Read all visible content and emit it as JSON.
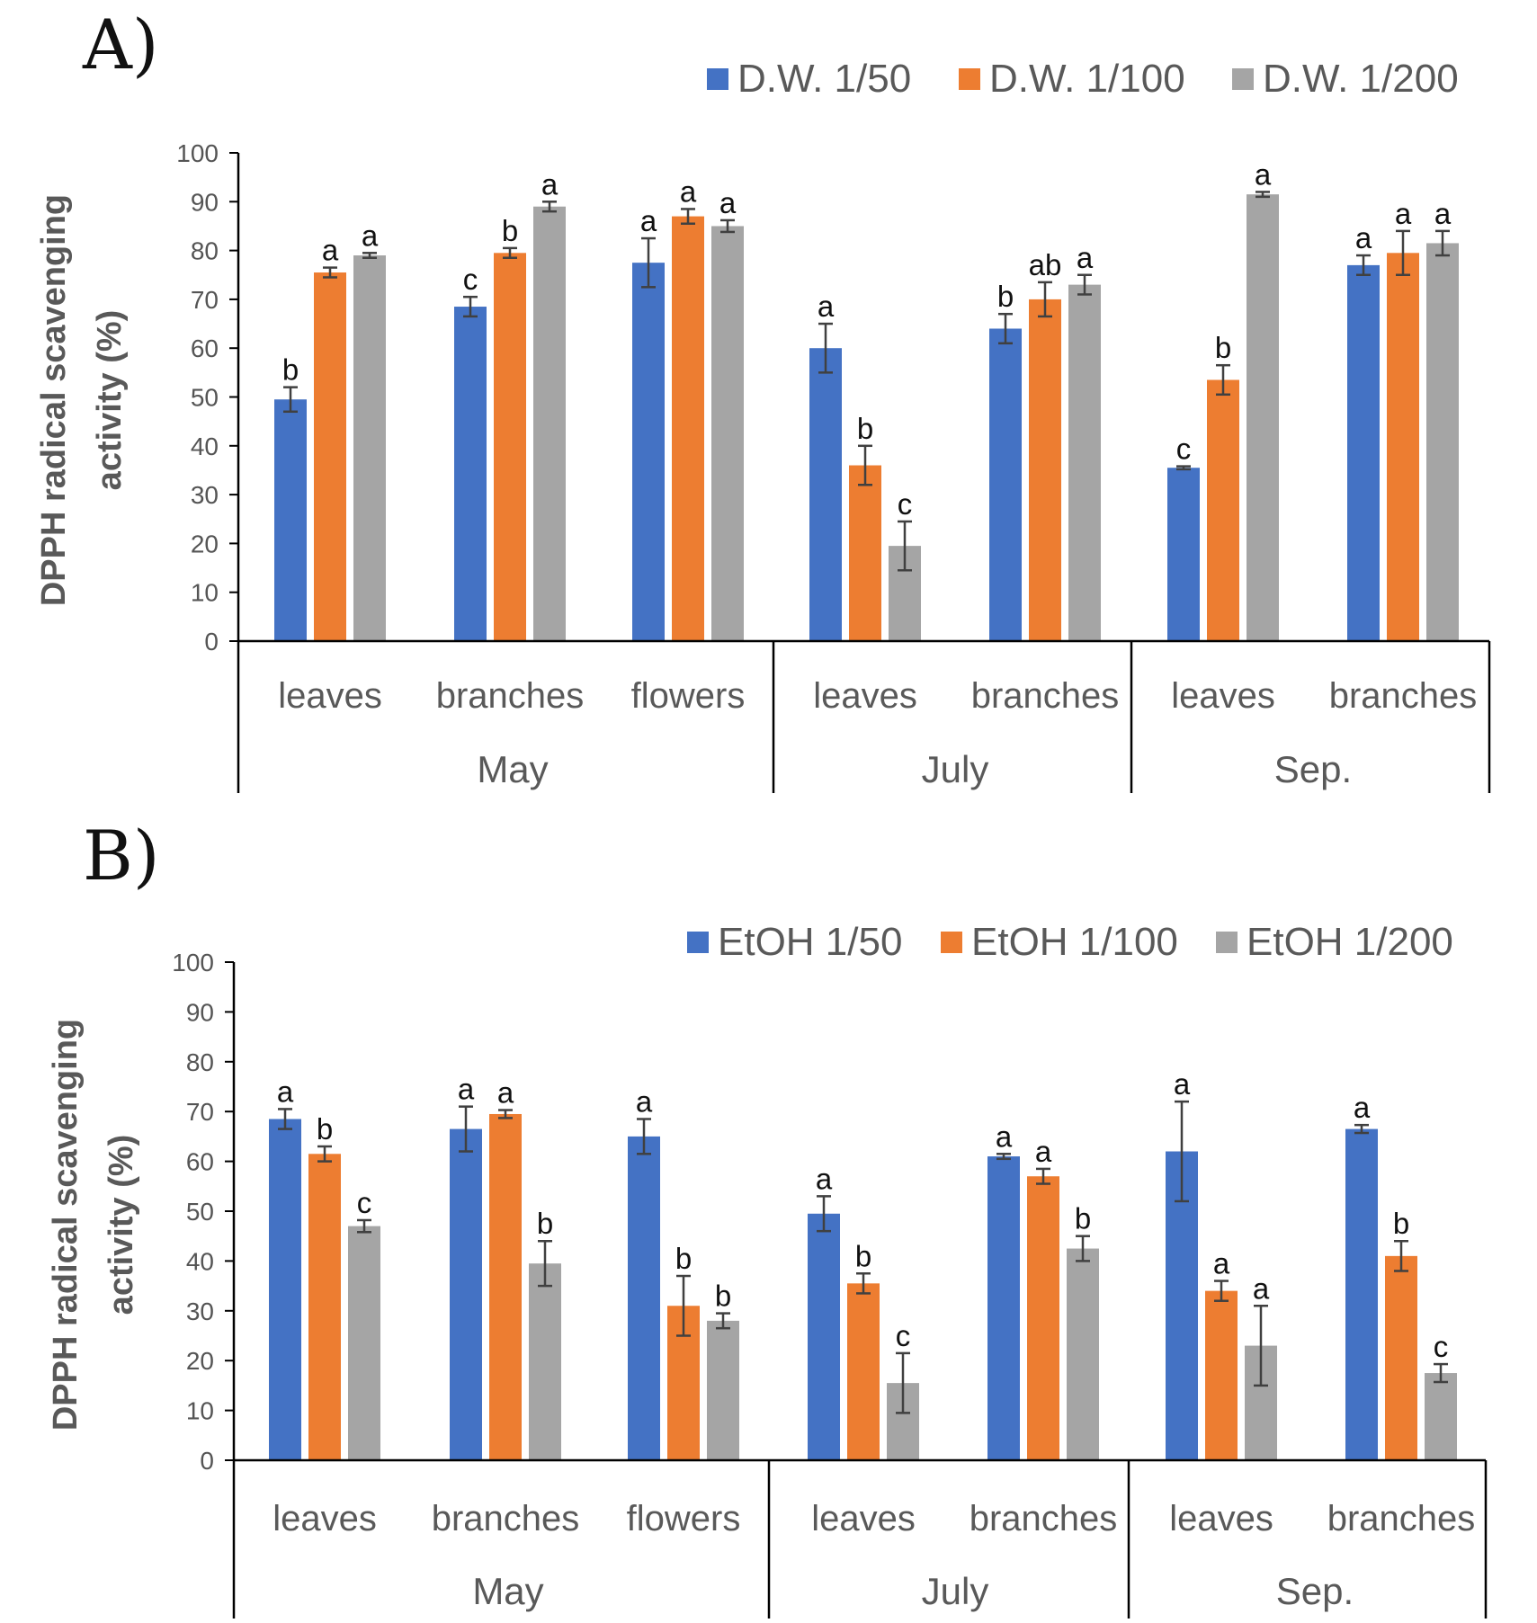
{
  "figure": {
    "y_axis_label_line1": "DPPH radical scavenging",
    "y_axis_label_line2": "activity (%)"
  },
  "chart_data": [
    {
      "type": "bar",
      "panel": "A)",
      "ylabel": "DPPH radical scavenging activity (%)",
      "ylim": [
        0,
        100
      ],
      "yticks": [
        0,
        10,
        20,
        30,
        40,
        50,
        60,
        70,
        80,
        90,
        100
      ],
      "legend_position": "top-right",
      "colors": [
        "#4472C4",
        "#ED7D31",
        "#A5A5A5"
      ],
      "categories": [
        "leaves",
        "branches",
        "flowers",
        "leaves",
        "branches",
        "leaves",
        "branches"
      ],
      "groups": [
        {
          "label": "May",
          "count": 3
        },
        {
          "label": "July",
          "count": 2
        },
        {
          "label": "Sep.",
          "count": 2
        }
      ],
      "series": [
        {
          "name": "D.W. 1/50",
          "values": [
            49.5,
            68.5,
            77.5,
            60,
            64,
            35.5,
            77
          ],
          "errors": [
            2.5,
            2,
            5,
            5,
            3,
            0.3,
            2
          ],
          "letters": [
            "b",
            "c",
            "a",
            "a",
            "b",
            "c",
            "a"
          ]
        },
        {
          "name": "D.W. 1/100",
          "values": [
            75.5,
            79.5,
            87,
            36,
            70,
            53.5,
            79.5
          ],
          "errors": [
            1,
            1,
            1.5,
            4,
            3.5,
            3,
            4.5
          ],
          "letters": [
            "a",
            "b",
            "a",
            "b",
            "ab",
            "b",
            "a"
          ]
        },
        {
          "name": "D.W. 1/200",
          "values": [
            79,
            89,
            85,
            19.5,
            73,
            91.5,
            81.5
          ],
          "errors": [
            0.5,
            1,
            1.2,
            5,
            2,
            0.5,
            2.5
          ],
          "letters": [
            "a",
            "a",
            "a",
            "c",
            "a",
            "a",
            "a"
          ]
        }
      ]
    },
    {
      "type": "bar",
      "panel": "B)",
      "ylabel": "DPPH radical scavenging activity (%)",
      "ylim": [
        0,
        100
      ],
      "yticks": [
        0,
        10,
        20,
        30,
        40,
        50,
        60,
        70,
        80,
        90,
        100
      ],
      "legend_position": "top-right",
      "colors": [
        "#4472C4",
        "#ED7D31",
        "#A5A5A5"
      ],
      "categories": [
        "leaves",
        "branches",
        "flowers",
        "leaves",
        "branches",
        "leaves",
        "branches"
      ],
      "groups": [
        {
          "label": "May",
          "count": 3
        },
        {
          "label": "July",
          "count": 2
        },
        {
          "label": "Sep.",
          "count": 2
        }
      ],
      "series": [
        {
          "name": "EtOH 1/50",
          "values": [
            68.5,
            66.5,
            65,
            49.5,
            61,
            62,
            66.5
          ],
          "errors": [
            2,
            4.5,
            3.5,
            3.5,
            0.5,
            10,
            0.8
          ],
          "letters": [
            "a",
            "a",
            "a",
            "a",
            "a",
            "a",
            "a"
          ]
        },
        {
          "name": "EtOH 1/100",
          "values": [
            61.5,
            69.5,
            31,
            35.5,
            57,
            34,
            41
          ],
          "errors": [
            1.5,
            0.8,
            6,
            2,
            1.5,
            2,
            3
          ],
          "letters": [
            "b",
            "a",
            "b",
            "b",
            "a",
            "a",
            "b"
          ]
        },
        {
          "name": "EtOH 1/200",
          "values": [
            47,
            39.5,
            28,
            15.5,
            42.5,
            23,
            17.5
          ],
          "errors": [
            1.2,
            4.5,
            1.5,
            6,
            2.5,
            8,
            1.8
          ],
          "letters": [
            "c",
            "b",
            "b",
            "c",
            "b",
            "a",
            "c"
          ]
        }
      ]
    }
  ]
}
